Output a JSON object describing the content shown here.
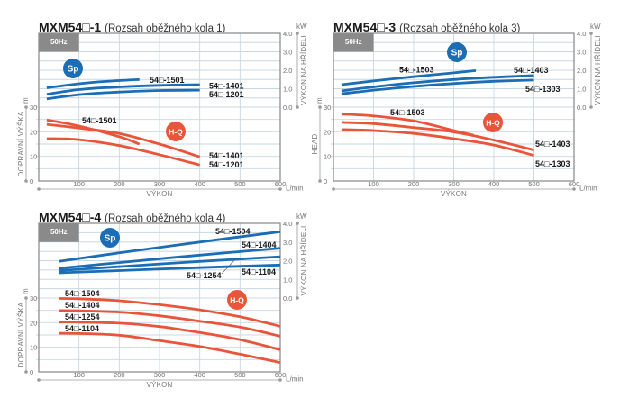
{
  "colors": {
    "power_curve": "#1b6db5",
    "head_curve": "#e8553a",
    "frame": "#8e8e8e",
    "grid": "#c8d8e2",
    "axis": "#9a9a9a",
    "frequency_badge": "#8a8a8a"
  },
  "chart_data": [
    {
      "type": "line",
      "title": "MXM54□-1",
      "subtitle": "(Rozsah oběžného kola 1)",
      "frequency_badge": "50Hz",
      "power_badge": "Sp",
      "head_badge": "H-Q",
      "xlabel": "VÝKON",
      "xunit": "L/min",
      "xlim": [
        0,
        600
      ],
      "xticks": [
        "100",
        "200",
        "300",
        "400",
        "500",
        "600"
      ],
      "ylabel_left": "DOPRAVNÍ VÝŠKA",
      "yunit_left": "m",
      "ylim_left": [
        0,
        30
      ],
      "yticks_left": [
        "0",
        "10",
        "20",
        "30"
      ],
      "ylabel_right": "VÝKON NA HŘÍDELI",
      "yunit_right": "kW",
      "ylim_right": [
        0,
        4
      ],
      "yticks_right": [
        "0.0",
        "1.0",
        "2.0",
        "3.0",
        "4.0"
      ],
      "grid": true,
      "power_series": [
        {
          "name": "54□-1501",
          "x": [
            20,
            100,
            150,
            200,
            250
          ],
          "y": [
            1.05,
            1.27,
            1.37,
            1.44,
            1.5
          ]
        },
        {
          "name": "54□-1401",
          "x": [
            20,
            100,
            200,
            300,
            400
          ],
          "y": [
            0.7,
            0.95,
            1.1,
            1.18,
            1.22
          ]
        },
        {
          "name": "54□-1201",
          "x": [
            20,
            100,
            200,
            300,
            400
          ],
          "y": [
            0.45,
            0.68,
            0.82,
            0.9,
            0.92
          ]
        }
      ],
      "head_series": [
        {
          "name": "54□-1501",
          "x": [
            20,
            100,
            200,
            250
          ],
          "y": [
            24.8,
            22.3,
            18.0,
            15.0
          ]
        },
        {
          "name": "54□-1401",
          "x": [
            20,
            100,
            200,
            300,
            400
          ],
          "y": [
            23.0,
            21.5,
            19.3,
            15.0,
            9.8
          ]
        },
        {
          "name": "54□-1201",
          "x": [
            20,
            100,
            200,
            300,
            400
          ],
          "y": [
            17.2,
            16.8,
            14.4,
            10.7,
            6.5
          ]
        }
      ]
    },
    {
      "type": "line",
      "title": "MXM54□-3",
      "subtitle": "(Rozsah oběžného kola 3)",
      "frequency_badge": "50Hz",
      "power_badge": "Sp",
      "head_badge": "H-Q",
      "xlabel": "VÝKON",
      "xunit": "L/min",
      "xlim": [
        0,
        600
      ],
      "xticks": [
        "100",
        "200",
        "300",
        "400",
        "500",
        "600"
      ],
      "ylabel_left": "HEAD",
      "yunit_left": "m",
      "ylim_left": [
        0,
        30
      ],
      "yticks_left": [
        "0",
        "10",
        "20",
        "30"
      ],
      "ylabel_right": "VÝKON NA HŘÍDELI",
      "yunit_right": "kW",
      "ylim_right": [
        0,
        4
      ],
      "yticks_right": [
        "0.0",
        "1.0",
        "2.0",
        "3.0",
        "4.0"
      ],
      "grid": true,
      "power_series": [
        {
          "name": "54□-1503",
          "x": [
            20,
            100,
            200,
            300,
            355
          ],
          "y": [
            1.22,
            1.42,
            1.65,
            1.86,
            1.98
          ]
        },
        {
          "name": "54□-1403",
          "x": [
            20,
            100,
            200,
            300,
            400,
            500
          ],
          "y": [
            0.88,
            1.1,
            1.32,
            1.5,
            1.62,
            1.71
          ]
        },
        {
          "name": "54□-1303",
          "x": [
            20,
            100,
            200,
            300,
            400,
            500
          ],
          "y": [
            0.72,
            0.92,
            1.12,
            1.28,
            1.4,
            1.47
          ]
        }
      ],
      "head_series": [
        {
          "name": "54□-1503",
          "x": [
            20,
            100,
            200,
            300,
            350
          ],
          "y": [
            27.2,
            26.4,
            24.4,
            20.5,
            18.6
          ]
        },
        {
          "name": "54□-1403",
          "x": [
            20,
            100,
            200,
            300,
            400,
            500
          ],
          "y": [
            23.8,
            23.3,
            21.7,
            19.9,
            16.6,
            12.6
          ]
        },
        {
          "name": "54□-1303",
          "x": [
            20,
            100,
            200,
            300,
            400,
            500
          ],
          "y": [
            20.9,
            20.5,
            19.3,
            17.2,
            14.6,
            10.4
          ]
        }
      ]
    },
    {
      "type": "line",
      "title": "MXM54□-4",
      "subtitle": "(Rozsah oběžného kola 4)",
      "frequency_badge": "50Hz",
      "power_badge": "Sp",
      "head_badge": "H-Q",
      "xlabel": "VÝKON",
      "xunit": "L/min",
      "xlim": [
        0,
        600
      ],
      "xticks": [
        "100",
        "200",
        "300",
        "400",
        "500",
        "600"
      ],
      "ylabel_left": "DOPRAVNÍ VÝŠKA",
      "yunit_left": "m",
      "ylim_left": [
        0,
        30
      ],
      "yticks_left": [
        "0",
        "10",
        "20",
        "30"
      ],
      "ylabel_right": "VÝKON NA HŘÍDELI",
      "yunit_right": "kW",
      "ylim_right": [
        0,
        4
      ],
      "yticks_right": [
        "0.0",
        "1.0",
        "2.0",
        "3.0",
        "4.0"
      ],
      "grid": true,
      "power_series": [
        {
          "name": "54□-1504",
          "x": [
            50,
            200,
            400,
            600
          ],
          "y": [
            1.96,
            2.42,
            3.0,
            3.55
          ]
        },
        {
          "name": "54□-1404",
          "x": [
            50,
            200,
            400,
            600
          ],
          "y": [
            1.59,
            1.9,
            2.3,
            2.67
          ]
        },
        {
          "name": "54□-1254",
          "x": [
            50,
            200,
            400,
            600
          ],
          "y": [
            1.47,
            1.68,
            1.96,
            2.21
          ]
        },
        {
          "name": "54□-1104",
          "x": [
            50,
            200,
            400,
            600
          ],
          "y": [
            1.35,
            1.47,
            1.63,
            1.77
          ]
        }
      ],
      "head_series": [
        {
          "name": "54□-1504",
          "x": [
            50,
            100,
            200,
            300,
            400,
            500,
            600
          ],
          "y": [
            29.8,
            29.7,
            28.9,
            27.3,
            25.2,
            22.4,
            18.5
          ]
        },
        {
          "name": "54□-1404",
          "x": [
            50,
            100,
            200,
            300,
            400,
            500,
            600
          ],
          "y": [
            24.9,
            24.8,
            24.3,
            22.8,
            20.6,
            18.2,
            14.5
          ]
        },
        {
          "name": "54□-1254",
          "x": [
            50,
            100,
            200,
            300,
            400,
            500,
            600
          ],
          "y": [
            20.2,
            20.2,
            19.8,
            18.4,
            16.0,
            13.1,
            9.0
          ]
        },
        {
          "name": "54□-1104",
          "x": [
            50,
            100,
            200,
            300,
            400,
            500,
            600
          ],
          "y": [
            15.7,
            15.6,
            14.9,
            12.7,
            10.3,
            7.2,
            3.8
          ]
        }
      ]
    }
  ]
}
